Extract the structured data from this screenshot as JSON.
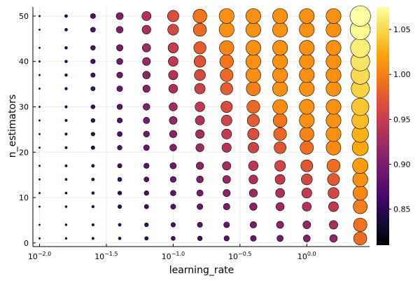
{
  "chart_data": {
    "type": "scatter",
    "xlabel": "learning_rate",
    "ylabel": "n_estimators",
    "x_scale": "log10",
    "x_ticks": [
      {
        "value": 0.01,
        "base": "10",
        "exp": "−2.0"
      },
      {
        "value": 0.0316,
        "base": "10",
        "exp": "−1.5"
      },
      {
        "value": 0.1,
        "base": "10",
        "exp": "−1.0"
      },
      {
        "value": 0.316,
        "base": "10",
        "exp": "−0.5"
      },
      {
        "value": 1.0,
        "base": "10",
        "exp": "0.0"
      }
    ],
    "y_ticks": [
      "0",
      "10",
      "20",
      "30",
      "40",
      "50"
    ],
    "y_tick_values": [
      0,
      10,
      20,
      30,
      40,
      50
    ],
    "ylim": [
      0,
      52
    ],
    "learning_rate_values": [
      0.01,
      0.0158,
      0.0251,
      0.0398,
      0.0631,
      0.1,
      0.1585,
      0.2512,
      0.3981,
      0.631,
      1.0,
      1.585,
      2.512
    ],
    "n_estimators_values": [
      1,
      4,
      8,
      11,
      14,
      17,
      21,
      24,
      27,
      30,
      34,
      37,
      40,
      43,
      47,
      50
    ],
    "colorbar": {
      "ticks": [
        "0.85",
        "0.90",
        "0.95",
        "1.00",
        "1.05"
      ],
      "tick_values": [
        0.85,
        0.9,
        0.95,
        1.0,
        1.05
      ],
      "range": [
        0.81,
        1.075
      ],
      "colormap": "inferno"
    },
    "grid": true,
    "legend": "none",
    "grid_color": "#ebebeb",
    "axis_color": "#000000"
  }
}
